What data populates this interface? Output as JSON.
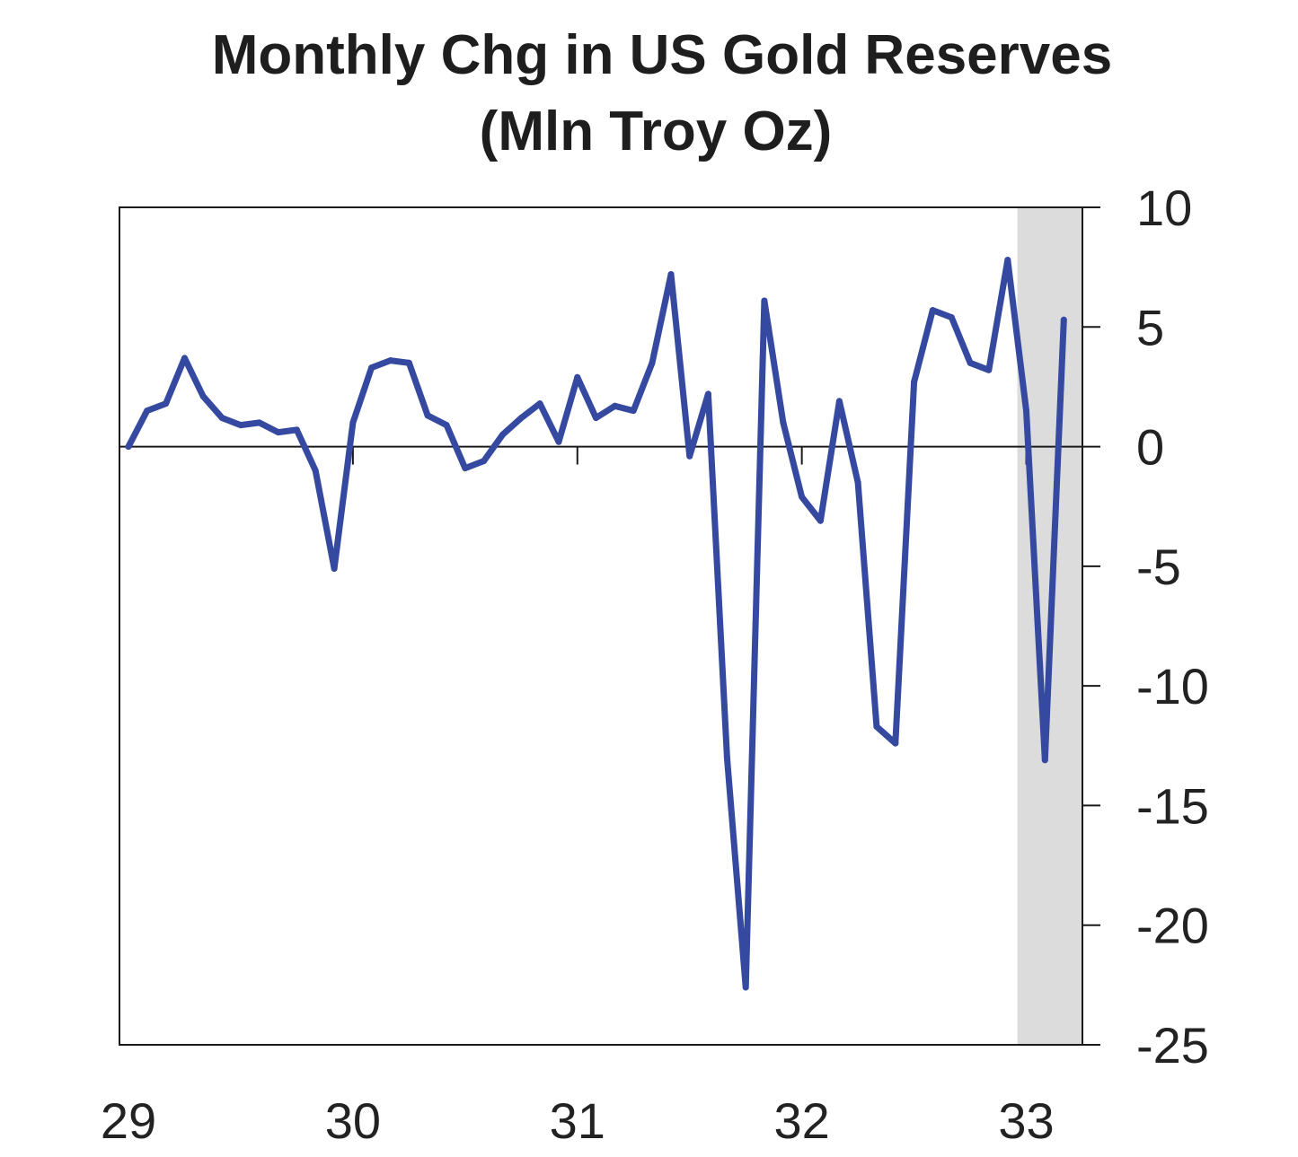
{
  "chart_data": {
    "type": "line",
    "title": "Monthly Chg in US Gold Reserves",
    "subtitle": "(Mln Troy Oz)",
    "xlabel": "",
    "ylabel": "",
    "x_ticks": [
      {
        "label": "29",
        "value": 1929
      },
      {
        "label": "30",
        "value": 1930
      },
      {
        "label": "31",
        "value": 1931
      },
      {
        "label": "32",
        "value": 1932
      },
      {
        "label": "33",
        "value": 1933
      }
    ],
    "xlim": [
      1929,
      1933.25
    ],
    "ylim": [
      -25,
      10
    ],
    "y_ticks": [
      {
        "label": "10",
        "value": 10
      },
      {
        "label": "5",
        "value": 5
      },
      {
        "label": "0",
        "value": 0
      },
      {
        "label": "-5",
        "value": -5
      },
      {
        "label": "-10",
        "value": -10
      },
      {
        "label": "-15",
        "value": -15
      },
      {
        "label": "-20",
        "value": -20
      },
      {
        "label": "-25",
        "value": -25
      }
    ],
    "y_axis_position": "right",
    "grid": false,
    "zero_line": true,
    "shaded_region": {
      "x_start": 1932.96,
      "x_end": 1933.25,
      "color": "#dcdcdd"
    },
    "series_color": "#3549a0",
    "series": [
      {
        "x": [
          1929.0,
          1929.083,
          1929.167,
          1929.25,
          1929.333,
          1929.417,
          1929.5,
          1929.583,
          1929.667,
          1929.75,
          1929.833,
          1929.917,
          1930.0,
          1930.083,
          1930.167,
          1930.25,
          1930.333,
          1930.417,
          1930.5,
          1930.583,
          1930.667,
          1930.75,
          1930.833,
          1930.917,
          1931.0,
          1931.083,
          1931.167,
          1931.25,
          1931.333,
          1931.417,
          1931.5,
          1931.583,
          1931.667,
          1931.75,
          1931.833,
          1931.917,
          1932.0,
          1932.083,
          1932.167,
          1932.25,
          1932.333,
          1932.417,
          1932.5,
          1932.583,
          1932.667,
          1932.75,
          1932.833,
          1932.917,
          1933.0,
          1933.083,
          1933.167
        ],
        "values": [
          0.0,
          1.5,
          1.8,
          3.7,
          2.1,
          1.2,
          0.9,
          1.0,
          0.6,
          0.7,
          -1.0,
          -5.1,
          1.0,
          3.3,
          3.6,
          3.5,
          1.3,
          0.9,
          -0.9,
          -0.6,
          0.5,
          1.2,
          1.8,
          0.2,
          2.9,
          1.2,
          1.7,
          1.5,
          3.5,
          7.2,
          -0.4,
          2.2,
          -13.0,
          -22.6,
          6.1,
          1.0,
          -2.1,
          -3.1,
          1.9,
          -1.5,
          -11.7,
          -12.4,
          2.7,
          5.7,
          5.4,
          3.5,
          3.2,
          7.8,
          1.5,
          -13.1,
          5.3
        ]
      }
    ]
  }
}
